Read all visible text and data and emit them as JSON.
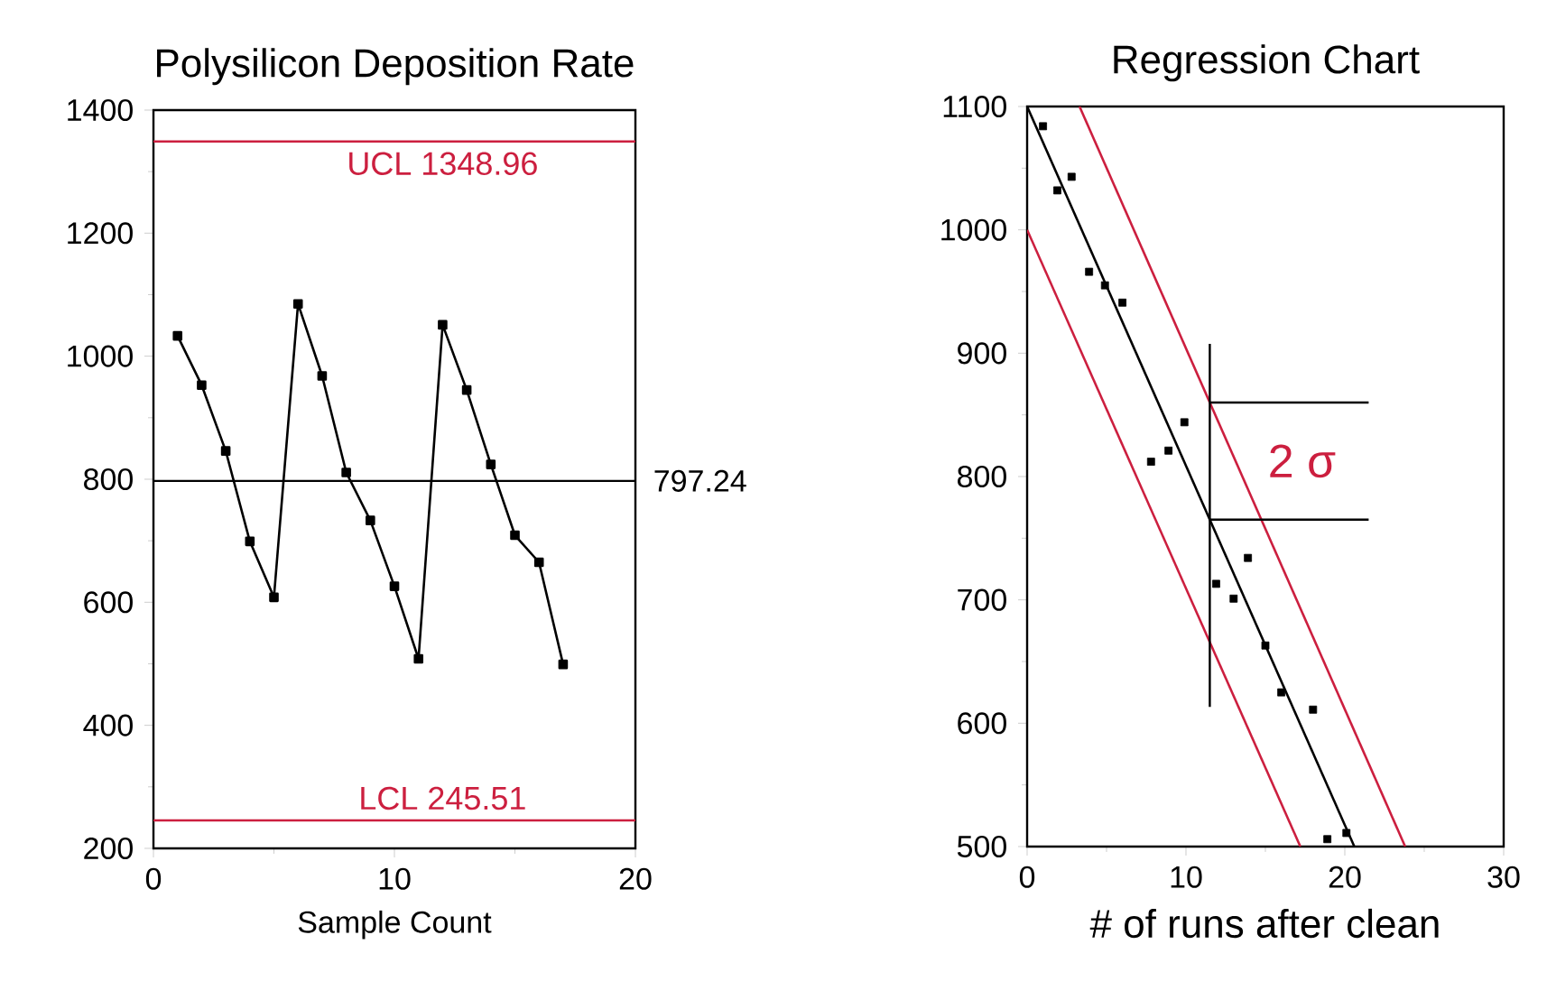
{
  "chart_data": [
    {
      "type": "line",
      "title": "Polysilicon Deposition Rate",
      "xlabel": "Sample Count",
      "marker": "square",
      "x": [
        1,
        2,
        3,
        4,
        5,
        6,
        7,
        8,
        9,
        10,
        11,
        12,
        13,
        14,
        15,
        16,
        17
      ],
      "series": [
        {
          "color": "#000000",
          "values": [
            1033,
            953,
            846,
            699,
            608,
            1085,
            968,
            811,
            733,
            626,
            508,
            1051,
            945,
            824,
            709,
            665,
            499
          ]
        }
      ],
      "xlim": [
        0,
        20
      ],
      "xticks": [
        0,
        10,
        20
      ],
      "ylim": [
        200,
        1400
      ],
      "yticks": [
        200,
        400,
        600,
        800,
        1000,
        1200,
        1400
      ],
      "ref_lines": [
        {
          "axis": "y",
          "value": 1348.96,
          "label": "UCL 1348.96",
          "color": "#cc1f3f"
        },
        {
          "axis": "y",
          "value": 797.24,
          "label": "797.24"
        },
        {
          "axis": "y",
          "value": 245.51,
          "label": "LCL 245.51",
          "color": "#cc1f3f"
        }
      ]
    },
    {
      "type": "scatter",
      "title": "Regression Chart",
      "xlabel": "# of runs after clean",
      "marker": "square",
      "series": [
        {
          "type": "scatter",
          "color": "#000000",
          "x": [
            1,
            1.9,
            2.8,
            3.9,
            4.9,
            6,
            7.8,
            8.9,
            9.9,
            11.9,
            13,
            13.9,
            15,
            16,
            18,
            18.9,
            20.1
          ],
          "values": [
            1084,
            1032,
            1043,
            966,
            955,
            941,
            812,
            821,
            844,
            713,
            701,
            734,
            663,
            625,
            611,
            506,
            511
          ]
        },
        {
          "type": "line",
          "marker": "none",
          "color": "#000000",
          "x": [
            0,
            20.6
          ],
          "values": [
            1100,
            500
          ]
        },
        {
          "type": "line",
          "marker": "none",
          "color": "#cc1f3f",
          "x": [
            3.3,
            23.8
          ],
          "values": [
            1100,
            500
          ]
        },
        {
          "type": "line",
          "marker": "none",
          "color": "#cc1f3f",
          "x": [
            0,
            17.2
          ],
          "values": [
            1000,
            500
          ]
        }
      ],
      "xlim": [
        0,
        30
      ],
      "xticks": [
        0,
        10,
        20,
        30
      ],
      "ylim": [
        500,
        1100
      ],
      "yticks": [
        500,
        600,
        700,
        800,
        900,
        1000,
        1100
      ],
      "annotations": [
        {
          "text": "2 σ",
          "x": 11.5,
          "y": 860
        }
      ]
    }
  ]
}
